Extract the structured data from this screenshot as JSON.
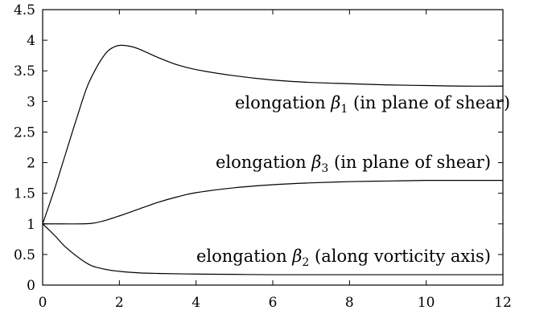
{
  "chart_data": {
    "type": "line",
    "title": "",
    "xlabel": "",
    "ylabel": "",
    "xlim": [
      0,
      12
    ],
    "ylim": [
      0,
      4.5
    ],
    "grid": false,
    "legend": "none",
    "x_ticks": [
      0,
      2,
      4,
      6,
      8,
      10,
      12
    ],
    "x_tick_labels": [
      "0",
      "2",
      "4",
      "6",
      "8",
      "10",
      "12"
    ],
    "y_ticks": [
      0,
      0.5,
      1,
      1.5,
      2,
      2.5,
      3,
      3.5,
      4,
      4.5
    ],
    "y_tick_labels": [
      "0",
      "0.5",
      "1",
      "1.5",
      "2",
      "2.5",
      "3",
      "3.5",
      "4",
      "4.5"
    ],
    "series": [
      {
        "key": "beta1",
        "x": [
          0,
          0.3,
          0.6,
          0.9,
          1.2,
          1.6,
          1.9,
          2.2,
          2.5,
          3,
          3.5,
          4,
          5,
          6,
          7,
          8,
          9,
          10,
          11,
          12
        ],
        "y": [
          1.0,
          1.55,
          2.15,
          2.75,
          3.3,
          3.75,
          3.9,
          3.91,
          3.86,
          3.72,
          3.6,
          3.52,
          3.42,
          3.35,
          3.31,
          3.29,
          3.27,
          3.26,
          3.25,
          3.25
        ]
      },
      {
        "key": "beta3",
        "x": [
          0,
          0.5,
          1,
          1.3,
          1.6,
          2,
          2.5,
          3,
          3.5,
          4,
          5,
          6,
          7,
          8,
          9,
          10,
          11,
          12
        ],
        "y": [
          1.0,
          1.0,
          1.0,
          1.01,
          1.05,
          1.13,
          1.24,
          1.35,
          1.44,
          1.51,
          1.59,
          1.64,
          1.67,
          1.69,
          1.7,
          1.71,
          1.71,
          1.71
        ]
      },
      {
        "key": "beta2",
        "x": [
          0,
          0.3,
          0.6,
          1.0,
          1.3,
          1.7,
          2,
          2.5,
          3,
          4,
          5,
          6,
          8,
          10,
          12
        ],
        "y": [
          1.0,
          0.82,
          0.62,
          0.42,
          0.31,
          0.25,
          0.225,
          0.2,
          0.19,
          0.18,
          0.175,
          0.17,
          0.17,
          0.17,
          0.17
        ]
      }
    ],
    "annotations": {
      "beta1": {
        "before": "elongation ",
        "symbol": "β",
        "sub": "1",
        "after": " (in plane of shear)"
      },
      "beta3": {
        "before": "elongation ",
        "symbol": "β",
        "sub": "3",
        "after": " (in plane of shear)"
      },
      "beta2": {
        "before": "elongation ",
        "symbol": "β",
        "sub": "2",
        "after": " (along vorticity axis)"
      }
    }
  }
}
